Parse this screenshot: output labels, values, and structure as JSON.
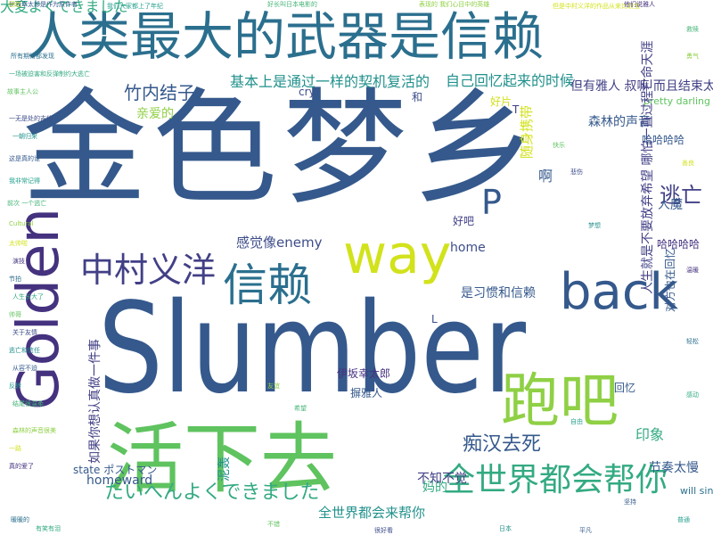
{
  "cloud": {
    "words": [
      {
        "id": "slumber",
        "text": "Slumber",
        "color": "#35598c"
      },
      {
        "id": "jinse",
        "text": "金色梦乡",
        "color": "#35598c"
      },
      {
        "id": "title",
        "text": "人类最大的武器是信赖",
        "color": "#2b6f8e"
      },
      {
        "id": "huoxia",
        "text": "活下去",
        "color": "#5fc35f"
      },
      {
        "id": "paoba",
        "text": "跑吧",
        "color": "#8fd045"
      },
      {
        "id": "back",
        "text": "back",
        "color": "#35598c"
      },
      {
        "id": "way",
        "text": "way",
        "color": "#d2e21b"
      },
      {
        "id": "xinlai",
        "text": "信赖",
        "color": "#2b6f8e"
      },
      {
        "id": "golden",
        "text": "Golden",
        "color": "#45327f"
      },
      {
        "id": "zhongcun",
        "text": "中村义洋",
        "color": "#424086"
      },
      {
        "id": "shijie1",
        "text": "全世界都会帮你",
        "color": "#33aa82"
      },
      {
        "id": "taihen1",
        "text": "大変よくできました",
        "color": "#33aa82"
      },
      {
        "id": "taihen2",
        "text": "たいへんよくできました",
        "color": "#33aa82"
      },
      {
        "id": "chihan",
        "text": "痴汉去死",
        "color": "#35598c"
      },
      {
        "id": "p",
        "text": "P",
        "color": "#35598c"
      },
      {
        "id": "zhuneijiezi",
        "text": "竹内结子",
        "color": "#35598c"
      },
      {
        "id": "jibenshang",
        "text": "基本上是通过一样的契机复活的",
        "color": "#21918c"
      },
      {
        "id": "ziji",
        "text": "自己回忆起来的时候",
        "color": "#21918c"
      },
      {
        "id": "qinaide",
        "text": "亲爱的",
        "color": "#8fd045"
      },
      {
        "id": "ganjue",
        "text": "感觉像enemy",
        "color": "#3d4d8a"
      },
      {
        "id": "shixi",
        "text": "是习惯和信赖",
        "color": "#35598c"
      },
      {
        "id": "home",
        "text": "home",
        "color": "#3d4d8a"
      },
      {
        "id": "homeward",
        "text": "homeward",
        "color": "#35598c"
      },
      {
        "id": "quanshijie2",
        "text": "全世界都会来帮你",
        "color": "#21918c"
      },
      {
        "id": "taohui",
        "text": "逃亡",
        "color": "#424086"
      },
      {
        "id": "huidao",
        "text": "但有雅人 叔嘛 而且结束太治愈了",
        "color": "#424086"
      },
      {
        "id": "senlin",
        "text": "森林的声音",
        "color": "#35598c"
      },
      {
        "id": "hahaha1",
        "text": "哈哈哈哈",
        "color": "#35598c"
      },
      {
        "id": "hahaha2",
        "text": "哈哈哈哈",
        "color": "#45327f"
      },
      {
        "id": "renmo",
        "text": "人魔",
        "color": "#35598c"
      },
      {
        "id": "pretty",
        "text": "pretty darling",
        "color": "#5fc35f"
      },
      {
        "id": "yinxiang",
        "text": "印象",
        "color": "#33aa82"
      },
      {
        "id": "jiezou",
        "text": "节奏太慢",
        "color": "#35598c"
      },
      {
        "id": "willsing",
        "text": "will sing",
        "color": "#2b6f8e"
      },
      {
        "id": "maomao",
        "text": "妈的",
        "color": "#33aa82"
      },
      {
        "id": "buzhibujue",
        "text": "不知不觉",
        "color": "#424086"
      },
      {
        "id": "yitanxinlai",
        "text": "伊坂幸太郎",
        "color": "#45327f"
      },
      {
        "id": "haoba",
        "text": "好吧",
        "color": "#424086"
      },
      {
        "id": "nanhao",
        "text": "摒雅人",
        "color": "#35598c"
      },
      {
        "id": "poster",
        "text": "state ポストマン",
        "color": "#35598c"
      },
      {
        "id": "cry",
        "text": "cry",
        "color": "#3d4d8a"
      },
      {
        "id": "haopian",
        "text": "好片",
        "color": "#d2e21b"
      },
      {
        "id": "he",
        "text": "和",
        "color": "#3d4d8a"
      },
      {
        "id": "huiyi",
        "text": "回忆",
        "color": "#35598c"
      },
      {
        "id": "a",
        "text": "啊",
        "color": "#35598c"
      },
      {
        "id": "t",
        "text": "T",
        "color": "#424086"
      },
      {
        "id": "l",
        "text": "L",
        "color": "#3d4d8a"
      },
      {
        "id": "ruguo",
        "text": "如果你想认真做一件事",
        "color": "#424086"
      },
      {
        "id": "yizhaiqiangzhan",
        "text": "人生就是不要放弃希望 哪怕一直过程亡命天涯",
        "color": "#424086"
      },
      {
        "id": "duifang",
        "text": "对方也在回忆",
        "color": "#35598c"
      },
      {
        "id": "suibiankou",
        "text": "随身携带",
        "color": "#d2e21b"
      },
      {
        "id": "nisuo",
        "text": "泥轰",
        "color": "#21918c"
      }
    ],
    "small_words": [
      "伊坂幸太郎是作为原作者",
      "我们大家都上了年纪",
      "好长叫日本电影的",
      "表现的 我们心目中的英雄",
      "但是中村义洋的作品从来比较宝",
      "他们说雅人",
      "所有期待都发现",
      "一场被迫害和反弹制约大逃亡",
      "故事主人公",
      "一无是处的吉他",
      "一朝归来",
      "这是真的谁",
      "我非常记得",
      "前次 一个逃亡",
      "Cultural",
      "太帅啦",
      "演技",
      "节拍",
      "人生长大了",
      "帅哥",
      "关于友情",
      "逃亡和信任",
      "从容不迫",
      "反转",
      "结尾很温柔",
      "森林的声音很美",
      "一路",
      "真的爱了",
      "暖暖的",
      "有笑有泪",
      "不错",
      "很好看",
      "日本",
      "平凡",
      "普通",
      "救赎",
      "勇气",
      "善良",
      "温暖",
      "轻松",
      "感动",
      "快乐",
      "悲伤",
      "梦想",
      "坚持",
      "自由",
      "希望",
      "友谊",
      "回忆"
    ]
  }
}
